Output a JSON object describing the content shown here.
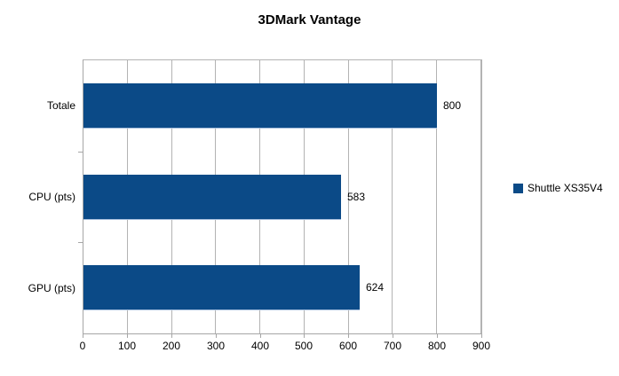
{
  "chart_data": {
    "type": "bar",
    "orientation": "horizontal",
    "title": "3DMark Vantage",
    "categories": [
      "Totale",
      "CPU (pts)",
      "GPU (pts)"
    ],
    "series": [
      {
        "name": "Shuttle XS35V4",
        "values": [
          800,
          583,
          624
        ]
      }
    ],
    "data_labels": [
      "800",
      "583",
      "624"
    ],
    "xlabel": "",
    "ylabel": "",
    "xlim": [
      0,
      900
    ],
    "x_ticks": [
      0,
      100,
      200,
      300,
      400,
      500,
      600,
      700,
      800,
      900
    ],
    "grid": "vertical-major",
    "legend_position": "right",
    "colors": {
      "bar": "#0b4a87",
      "bar_bottom_edge": "#a9c0dd",
      "gridline": "#b3b3b3",
      "axis": "#a6a6a6",
      "text": "#000000",
      "background": "#ffffff"
    }
  }
}
